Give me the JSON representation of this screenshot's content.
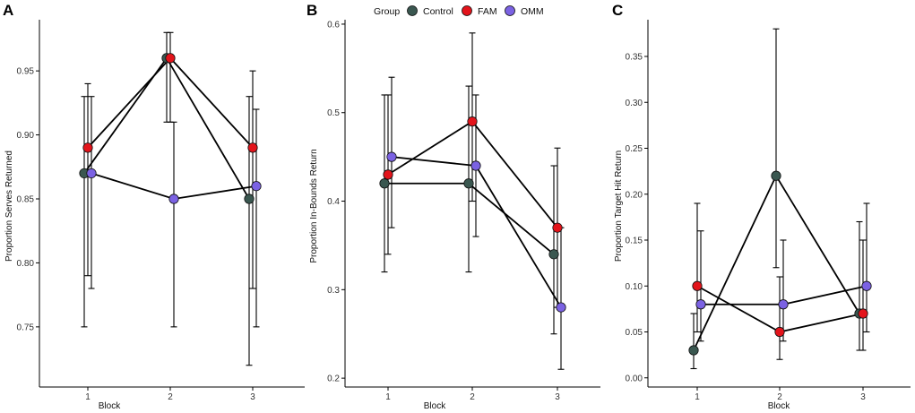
{
  "legend": {
    "title": "Group",
    "items": [
      {
        "label": "Control",
        "color": "#3a5750"
      },
      {
        "label": "FAM",
        "color": "#e3141b"
      },
      {
        "label": "OMM",
        "color": "#7b62e3"
      }
    ]
  },
  "chart_data": [
    {
      "type": "line",
      "panel": "A",
      "xlabel": "Block",
      "ylabel": "Proportion Serves Returned",
      "categories": [
        "1",
        "2",
        "3"
      ],
      "ylim": [
        0.703,
        0.99
      ],
      "yticks": [
        "0.75",
        "0.80",
        "0.85",
        "0.90",
        "0.95"
      ],
      "series": [
        {
          "name": "Control",
          "values": [
            0.87,
            0.96,
            0.85
          ],
          "lower": [
            0.75,
            0.91,
            0.72
          ],
          "upper": [
            0.93,
            0.98,
            0.93
          ]
        },
        {
          "name": "FAM",
          "values": [
            0.89,
            0.96,
            0.89
          ],
          "lower": [
            0.79,
            0.91,
            0.78
          ],
          "upper": [
            0.94,
            0.98,
            0.95
          ]
        },
        {
          "name": "OMM",
          "values": [
            0.87,
            0.85,
            0.86
          ],
          "lower": [
            0.78,
            0.75,
            0.75
          ],
          "upper": [
            0.93,
            0.91,
            0.92
          ]
        }
      ]
    },
    {
      "type": "line",
      "panel": "B",
      "xlabel": "Block",
      "ylabel": "Proportion In-Bounds Return",
      "categories": [
        "1",
        "2",
        "3"
      ],
      "ylim": [
        0.19,
        0.605
      ],
      "yticks": [
        "0.2",
        "0.3",
        "0.4",
        "0.5",
        "0.6"
      ],
      "series": [
        {
          "name": "Control",
          "values": [
            0.42,
            0.42,
            0.34
          ],
          "lower": [
            0.32,
            0.32,
            0.25
          ],
          "upper": [
            0.52,
            0.53,
            0.44
          ]
        },
        {
          "name": "FAM",
          "values": [
            0.43,
            0.49,
            0.37
          ],
          "lower": [
            0.34,
            0.4,
            0.28
          ],
          "upper": [
            0.52,
            0.59,
            0.46
          ]
        },
        {
          "name": "OMM",
          "values": [
            0.45,
            0.44,
            0.28
          ],
          "lower": [
            0.37,
            0.36,
            0.21
          ],
          "upper": [
            0.54,
            0.52,
            0.37
          ]
        }
      ]
    },
    {
      "type": "line",
      "panel": "C",
      "xlabel": "Block",
      "ylabel": "Proportion Target Hit Return",
      "categories": [
        "1",
        "2",
        "3"
      ],
      "ylim": [
        -0.01,
        0.39
      ],
      "yticks": [
        "0.00",
        "0.05",
        "0.10",
        "0.15",
        "0.20",
        "0.25",
        "0.30",
        "0.35"
      ],
      "series": [
        {
          "name": "Control",
          "values": [
            0.03,
            0.22,
            0.07
          ],
          "lower": [
            0.01,
            0.12,
            0.03
          ],
          "upper": [
            0.07,
            0.38,
            0.17
          ]
        },
        {
          "name": "FAM",
          "values": [
            0.1,
            0.05,
            0.07
          ],
          "lower": [
            0.05,
            0.02,
            0.03
          ],
          "upper": [
            0.19,
            0.11,
            0.15
          ]
        },
        {
          "name": "OMM",
          "values": [
            0.08,
            0.08,
            0.1
          ],
          "lower": [
            0.04,
            0.04,
            0.05
          ],
          "upper": [
            0.16,
            0.15,
            0.19
          ]
        }
      ]
    }
  ]
}
